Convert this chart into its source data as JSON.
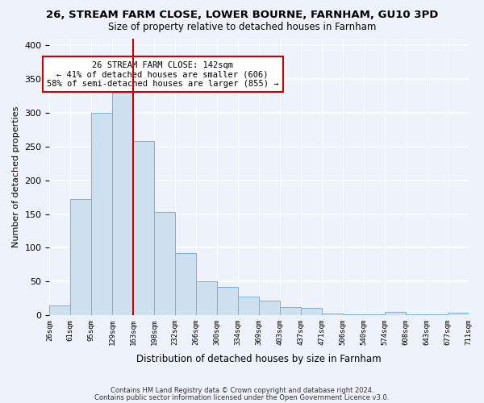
{
  "title": "26, STREAM FARM CLOSE, LOWER BOURNE, FARNHAM, GU10 3PD",
  "subtitle": "Size of property relative to detached houses in Farnham",
  "xlabel": "Distribution of detached houses by size in Farnham",
  "ylabel": "Number of detached properties",
  "bin_edges": [
    "26sqm",
    "61sqm",
    "95sqm",
    "129sqm",
    "163sqm",
    "198sqm",
    "232sqm",
    "266sqm",
    "300sqm",
    "334sqm",
    "369sqm",
    "403sqm",
    "437sqm",
    "471sqm",
    "506sqm",
    "540sqm",
    "574sqm",
    "608sqm",
    "643sqm",
    "677sqm",
    "711sqm"
  ],
  "bar_heights": [
    15,
    172,
    300,
    330,
    258,
    153,
    92,
    50,
    42,
    28,
    22,
    12,
    11,
    3,
    1,
    1,
    5,
    1,
    1,
    4
  ],
  "bar_color": "#cce0f0",
  "bar_edge_color": "#7ab0d4",
  "vline_x": 3,
  "vline_color": "#cc0000",
  "annotation_line1": "26 STREAM FARM CLOSE: 142sqm",
  "annotation_line2": "← 41% of detached houses are smaller (606)",
  "annotation_line3": "58% of semi-detached houses are larger (855) →",
  "annotation_box_facecolor": "#ffffff",
  "annotation_box_edgecolor": "#cc0000",
  "ylim": [
    0,
    410
  ],
  "yticks": [
    0,
    50,
    100,
    150,
    200,
    250,
    300,
    350,
    400
  ],
  "footer1": "Contains HM Land Registry data © Crown copyright and database right 2024.",
  "footer2": "Contains public sector information licensed under the Open Government Licence v3.0.",
  "bg_color": "#eef2fb"
}
